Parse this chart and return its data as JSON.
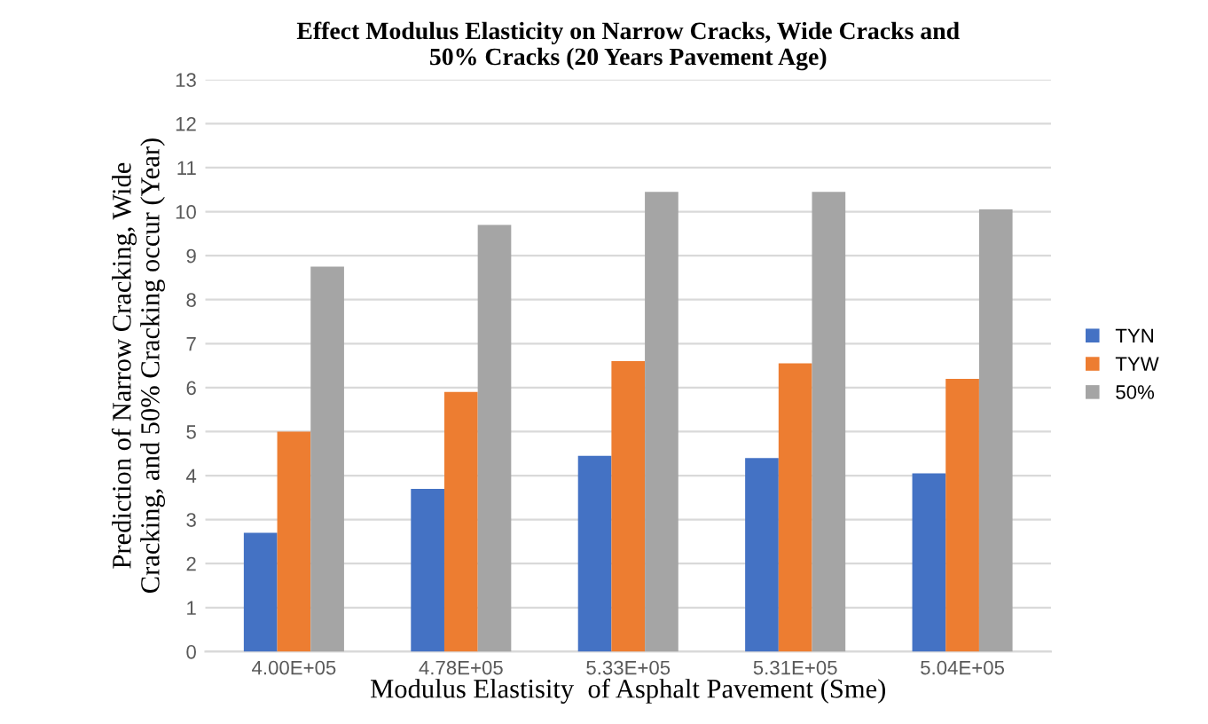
{
  "chart_data": {
    "type": "bar",
    "title": "Effect Modulus Elasticity on Narrow Cracks, Wide Cracks and\n50% Cracks (20 Years Pavement Age)",
    "xlabel": "Modulus Elastisity  of Asphalt Pavement (Sme)",
    "ylabel": "Prediction of Narrow Cracking, Wide\nCracking, and 50% Cracking occur (Year)",
    "categories": [
      "4.00E+05",
      "4.78E+05",
      "5.33E+05",
      "5.31E+05",
      "5.04E+05"
    ],
    "series": [
      {
        "name": "TYN",
        "color": "#4472c4",
        "values": [
          2.7,
          3.7,
          4.45,
          4.4,
          4.05
        ]
      },
      {
        "name": "TYW",
        "color": "#ed7d31",
        "values": [
          5.0,
          5.9,
          6.6,
          6.55,
          6.2
        ]
      },
      {
        "name": "50%",
        "color": "#a5a5a5",
        "values": [
          8.75,
          9.7,
          10.45,
          10.45,
          10.05
        ]
      }
    ],
    "ylim": [
      0,
      13
    ],
    "yticks": [
      0,
      1,
      2,
      3,
      4,
      5,
      6,
      7,
      8,
      9,
      10,
      11,
      12,
      13
    ],
    "grid": "y",
    "legend": "right"
  }
}
